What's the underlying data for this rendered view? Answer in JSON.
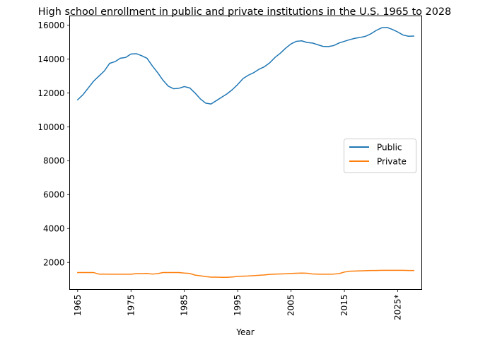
{
  "chart_data": {
    "type": "line",
    "title": "High school enrollment in public and private institutions in the U.S. 1965 to 2028",
    "xlabel": "Year",
    "ylabel": "",
    "x_tick_labels": [
      "1965",
      "1975",
      "1985",
      "1995",
      "2005",
      "2015",
      "2025*"
    ],
    "y_ticks": [
      2000,
      4000,
      6000,
      8000,
      10000,
      12000,
      14000,
      16000
    ],
    "xlim": [
      1963.5,
      2029.5
    ],
    "ylim": [
      400,
      16550
    ],
    "grid": false,
    "legend_position": "center-right",
    "x": [
      1965,
      1966,
      1967,
      1968,
      1969,
      1970,
      1971,
      1972,
      1973,
      1974,
      1975,
      1976,
      1977,
      1978,
      1979,
      1980,
      1981,
      1982,
      1983,
      1984,
      1985,
      1986,
      1987,
      1988,
      1989,
      1990,
      1991,
      1992,
      1993,
      1994,
      1995,
      1996,
      1997,
      1998,
      1999,
      2000,
      2001,
      2002,
      2003,
      2004,
      2005,
      2006,
      2007,
      2008,
      2009,
      2010,
      2011,
      2012,
      2013,
      2014,
      2015,
      2016,
      2017,
      2018,
      2019,
      2020,
      2021,
      2022,
      2023,
      2024,
      2025,
      2026,
      2027,
      2028
    ],
    "series": [
      {
        "name": "Public",
        "color": "#1f77b4",
        "values": [
          11600,
          11900,
          12300,
          12700,
          13000,
          13300,
          13750,
          13850,
          14050,
          14100,
          14300,
          14320,
          14200,
          14050,
          13600,
          13200,
          12750,
          12400,
          12250,
          12280,
          12380,
          12300,
          12000,
          11650,
          11400,
          11350,
          11550,
          11750,
          11950,
          12200,
          12500,
          12850,
          13050,
          13200,
          13400,
          13550,
          13780,
          14100,
          14350,
          14650,
          14900,
          15050,
          15080,
          14980,
          14950,
          14850,
          14750,
          14740,
          14800,
          14950,
          15050,
          15150,
          15230,
          15280,
          15350,
          15500,
          15700,
          15850,
          15870,
          15750,
          15600,
          15420,
          15350,
          15360
        ]
      },
      {
        "name": "Private",
        "color": "#ff7f0e",
        "values": [
          1400,
          1400,
          1400,
          1400,
          1310,
          1310,
          1300,
          1300,
          1300,
          1300,
          1300,
          1340,
          1340,
          1350,
          1310,
          1340,
          1400,
          1400,
          1400,
          1400,
          1370,
          1350,
          1250,
          1210,
          1160,
          1130,
          1130,
          1120,
          1120,
          1140,
          1170,
          1190,
          1200,
          1220,
          1240,
          1260,
          1290,
          1310,
          1320,
          1330,
          1350,
          1360,
          1370,
          1360,
          1320,
          1310,
          1300,
          1300,
          1310,
          1340,
          1430,
          1480,
          1490,
          1500,
          1510,
          1520,
          1520,
          1530,
          1530,
          1530,
          1530,
          1530,
          1520,
          1520
        ]
      }
    ]
  }
}
